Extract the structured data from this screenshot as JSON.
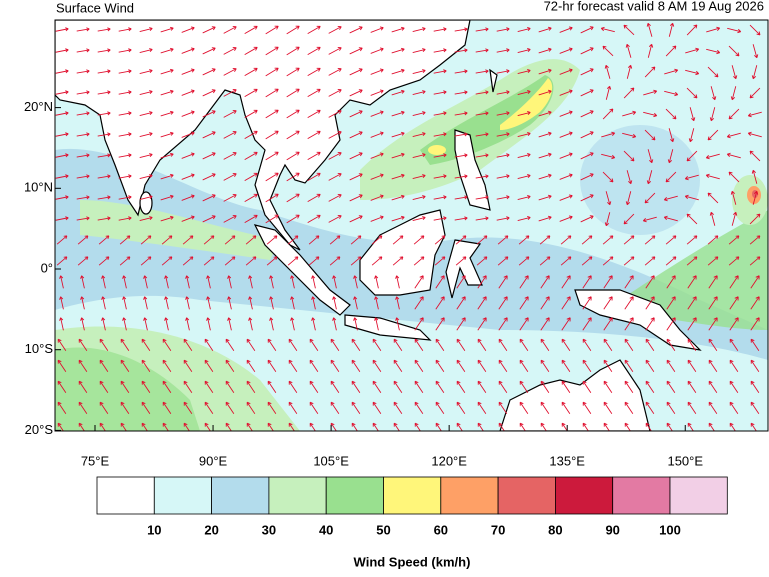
{
  "header": {
    "title": "Surface Wind",
    "subtitle": "72-hr forecast valid 8 AM 19 Aug 2026"
  },
  "map": {
    "lon_ticks": [
      {
        "value": 75,
        "label": "75°E"
      },
      {
        "value": 90,
        "label": "90°E"
      },
      {
        "value": 105,
        "label": "105°E"
      },
      {
        "value": 120,
        "label": "120°E"
      },
      {
        "value": 135,
        "label": "135°E"
      },
      {
        "value": 150,
        "label": "150°E"
      }
    ],
    "lat_ticks": [
      {
        "value": 20,
        "label": "20°N"
      },
      {
        "value": 10,
        "label": "10°N"
      },
      {
        "value": 0,
        "label": "0°"
      },
      {
        "value": -10,
        "label": "10°S"
      },
      {
        "value": -20,
        "label": "20°S"
      }
    ]
  },
  "legend": {
    "colors": [
      "#ffffff",
      "#d6f7f7",
      "#b3dcec",
      "#c6f0bd",
      "#99e08f",
      "#fff67a",
      "#fea066",
      "#e56464",
      "#cc1a3c",
      "#e37aa3",
      "#f2cfe6"
    ],
    "levels": [
      10,
      20,
      30,
      40,
      50,
      60,
      70,
      80,
      90,
      100
    ],
    "title": "Wind Speed (km/h)"
  }
}
